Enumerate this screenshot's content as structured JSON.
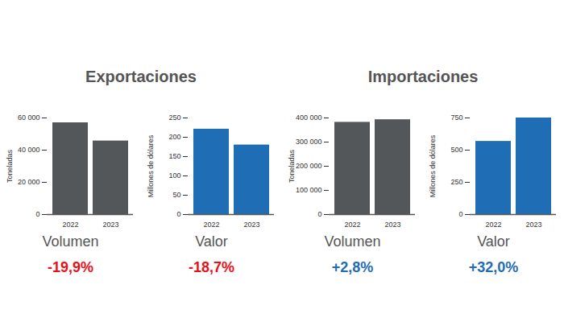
{
  "chart_data": [
    {
      "type": "bar",
      "subtitle": "Exportaciones",
      "title": "Volumen",
      "y_label": "Toneladas",
      "categories": [
        "2022",
        "2023"
      ],
      "values": [
        57000,
        45700
      ],
      "color": "#54575a",
      "ylim": [
        0,
        60000
      ],
      "yticks": [
        0,
        {
          "value": 20000,
          "label": "20 000"
        },
        {
          "value": 40000,
          "label": "40 000"
        },
        {
          "value": 60000,
          "label": "60 000"
        }
      ],
      "annotations": [
        {
          "text": "-19,9%",
          "color": "#e8101a"
        }
      ]
    },
    {
      "type": "bar",
      "subtitle": "Exportaciones",
      "title": "Valor",
      "y_label": "Millones de dólares",
      "categories": [
        "2022",
        "2023"
      ],
      "values": [
        221,
        180
      ],
      "color": "#1f6db5",
      "ylim": [
        0,
        250
      ],
      "yticks": [
        0,
        50,
        100,
        150,
        200,
        250
      ],
      "annotations": [
        {
          "text": "-18,7%",
          "color": "#e8101a"
        }
      ]
    },
    {
      "type": "bar",
      "subtitle": "Importaciones",
      "title": "Volumen",
      "y_label": "Toneladas",
      "categories": [
        "2022",
        "2023"
      ],
      "values": [
        382000,
        392700
      ],
      "color": "#54575a",
      "ylim": [
        0,
        400000
      ],
      "yticks": [
        0,
        {
          "value": 100000,
          "label": "100 000"
        },
        {
          "value": 200000,
          "label": "200 000"
        },
        {
          "value": 300000,
          "label": "300 000"
        },
        {
          "value": 400000,
          "label": "400 000"
        }
      ],
      "annotations": [
        {
          "text": "+2,8%",
          "color": "#1f6db5"
        }
      ]
    },
    {
      "type": "bar",
      "subtitle": "Importaciones",
      "title": "Valor",
      "y_label": "Millones de dólares",
      "categories": [
        "2022",
        "2023"
      ],
      "values": [
        568,
        750
      ],
      "color": "#1f6db5",
      "ylim": [
        0,
        750
      ],
      "yticks": [
        0,
        250,
        500,
        750
      ],
      "annotations": [
        {
          "text": "+32,0%",
          "color": "#1f6db5"
        }
      ]
    }
  ]
}
